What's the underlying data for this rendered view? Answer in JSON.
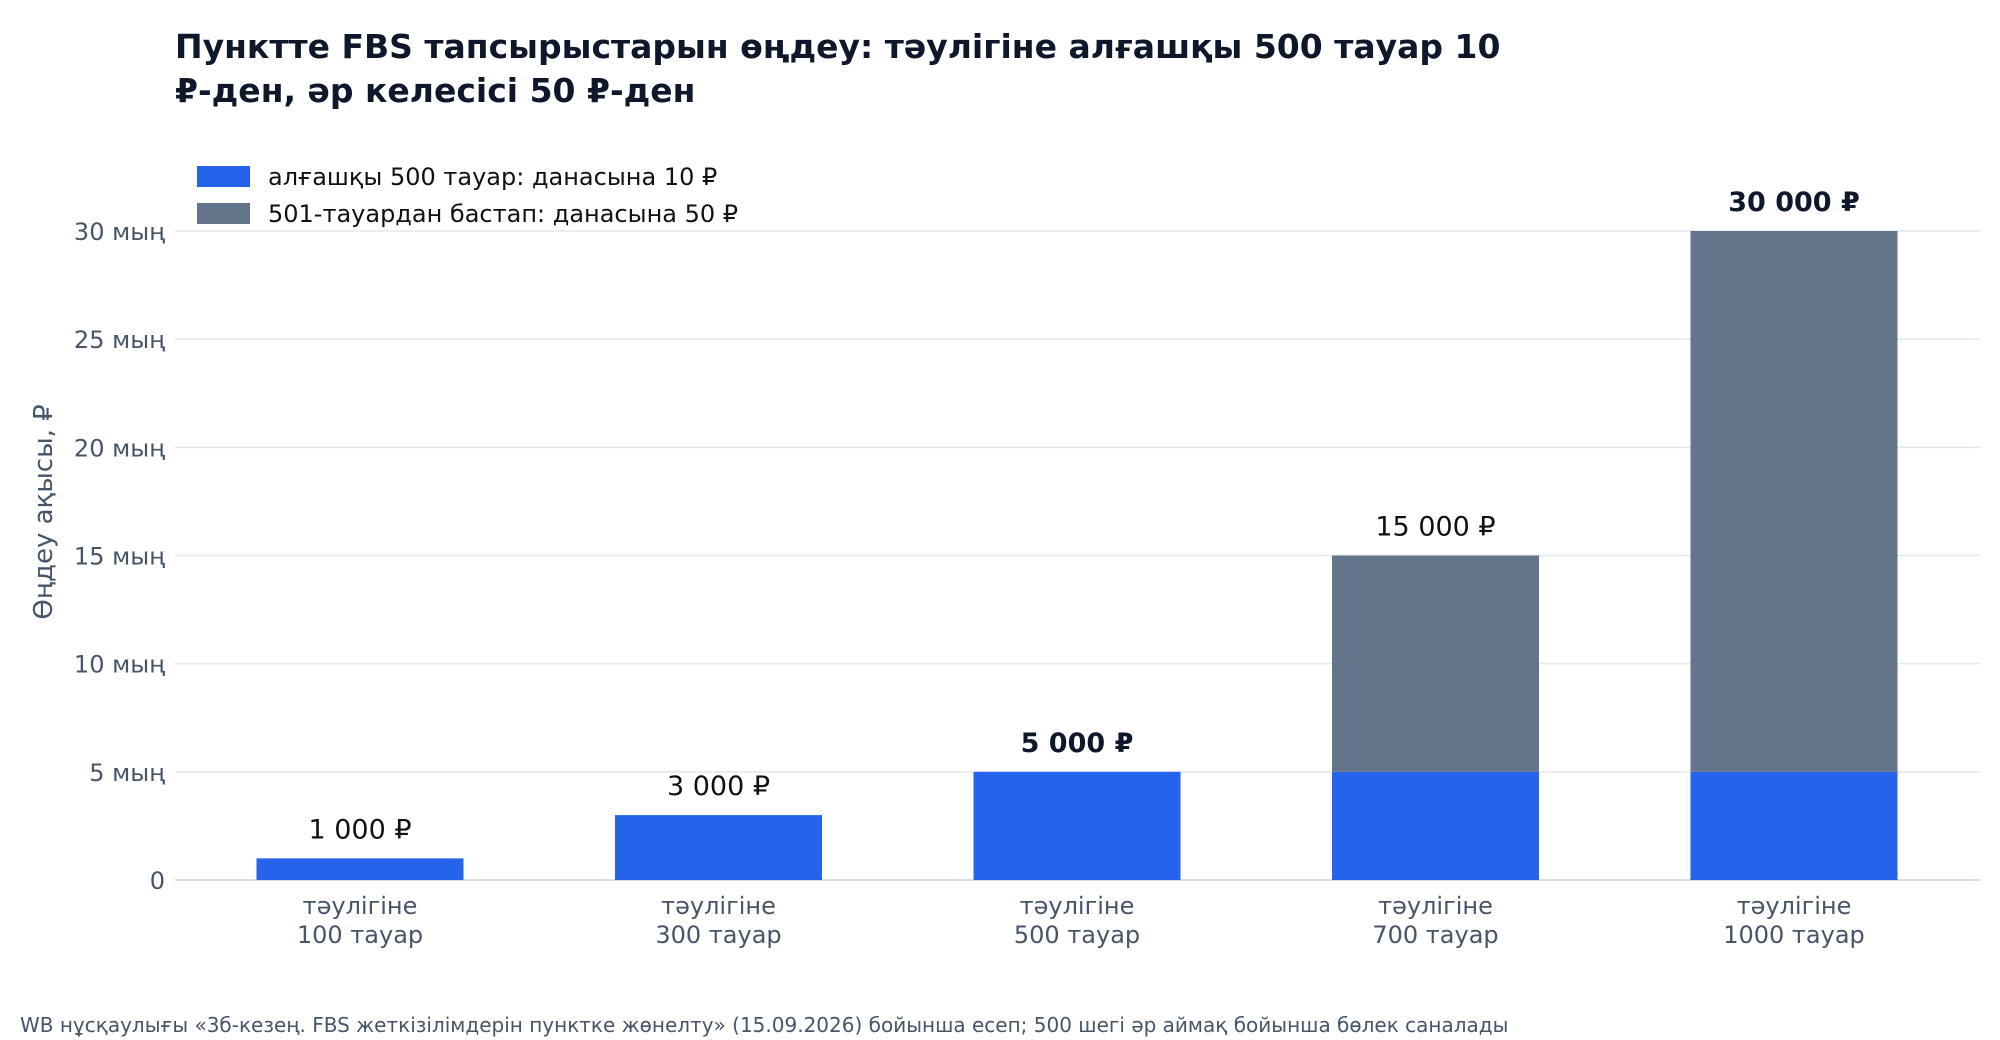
{
  "chart_data": {
    "type": "bar",
    "stacked": true,
    "title_lines": [
      "Пунктте FBS тапсырыстарын өңдеу: тәулігіне алғашқы 500 тауар 10",
      "₽-ден, әр келесісі 50 ₽-ден"
    ],
    "ylabel": "Өңдеу ақысы, ₽",
    "ylim": [
      0,
      30000
    ],
    "yticks": [
      0,
      5000,
      10000,
      15000,
      20000,
      25000,
      30000
    ],
    "ytick_labels": [
      "0",
      "5 мың",
      "10 мың",
      "15 мың",
      "20 мың",
      "25 мың",
      "30 мың"
    ],
    "grid": true,
    "legend_position": "top-left",
    "categories": [
      [
        "тәулігіне",
        "100 тауар"
      ],
      [
        "тәулігіне",
        "300 тауар"
      ],
      [
        "тәулігіне",
        "500 тауар"
      ],
      [
        "тәулігіне",
        "700 тауар"
      ],
      [
        "тәулігіне",
        "1000 тауар"
      ]
    ],
    "series": [
      {
        "name": "алғашқы 500 тауар: данасына 10 ₽",
        "color": "#2563eb",
        "values": [
          1000,
          3000,
          5000,
          5000,
          5000
        ]
      },
      {
        "name": "501-тауардан бастап: данасына 50 ₽",
        "color": "#64748b",
        "values": [
          0,
          0,
          0,
          10000,
          25000
        ]
      }
    ],
    "totals": [
      {
        "text": "1 000 ₽",
        "bold": false
      },
      {
        "text": "3 000 ₽",
        "bold": false
      },
      {
        "text": "5 000 ₽",
        "bold": true
      },
      {
        "text": "15 000 ₽",
        "bold": false
      },
      {
        "text": "30 000 ₽",
        "bold": true
      }
    ],
    "source": "WB нұсқаулығы «3б-кезең. FBS жеткізілімдерін пунктке жөнелту» (15.09.2026) бойынша есеп; 500 шегі әр аймақ бойынша бөлек саналады"
  }
}
